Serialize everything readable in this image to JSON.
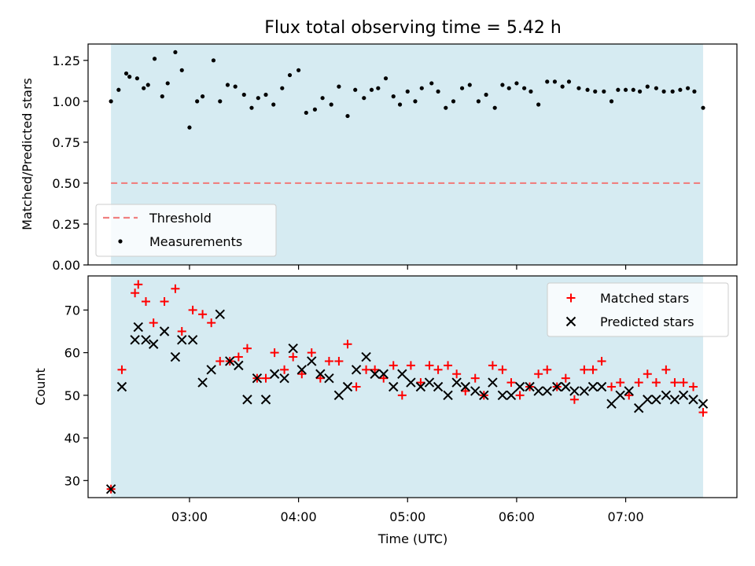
{
  "figure": {
    "title": "Flux total observing time = 5.42 h",
    "xlabel": "Time (UTC)"
  },
  "colors": {
    "span": "#add8e6",
    "threshold": "#f08080",
    "matched": "#ff0000",
    "predicted": "#000000",
    "measurement": "#000000"
  },
  "chart_data": [
    {
      "type": "scatter",
      "ylabel": "Matched/Predicted stars",
      "ylim": [
        0,
        1.35
      ],
      "yticks": [
        0,
        0.25,
        0.5,
        0.75,
        1.0,
        1.25
      ],
      "ytick_labels": [
        "0.00",
        "0.25",
        "0.50",
        "0.75",
        "1.00",
        "1.25"
      ],
      "x_unit": "hours UTC",
      "xlim": [
        2.07,
        8.02
      ],
      "xticks": [
        3,
        4,
        5,
        6,
        7
      ],
      "span": [
        2.28,
        7.71
      ],
      "threshold": 0.5,
      "legend": {
        "position": "lower-left",
        "threshold_label": "Threshold",
        "measurements_label": "Measurements"
      },
      "x": [
        2.28,
        2.35,
        2.42,
        2.45,
        2.52,
        2.58,
        2.62,
        2.68,
        2.75,
        2.8,
        2.87,
        2.93,
        3.0,
        3.07,
        3.12,
        3.22,
        3.28,
        3.35,
        3.42,
        3.5,
        3.57,
        3.63,
        3.7,
        3.77,
        3.85,
        3.92,
        4.0,
        4.07,
        4.15,
        4.22,
        4.3,
        4.37,
        4.45,
        4.52,
        4.6,
        4.67,
        4.73,
        4.8,
        4.87,
        4.93,
        5.0,
        5.07,
        5.13,
        5.22,
        5.28,
        5.35,
        5.42,
        5.5,
        5.57,
        5.65,
        5.72,
        5.8,
        5.87,
        5.93,
        6.0,
        6.07,
        6.13,
        6.2,
        6.28,
        6.35,
        6.42,
        6.48,
        6.57,
        6.65,
        6.72,
        6.8,
        6.87,
        6.93,
        7.0,
        7.07,
        7.13,
        7.2,
        7.28,
        7.35,
        7.43,
        7.5,
        7.57,
        7.63,
        7.71
      ],
      "y": [
        1.0,
        1.07,
        1.17,
        1.15,
        1.14,
        1.08,
        1.1,
        1.26,
        1.03,
        1.11,
        1.3,
        1.19,
        0.84,
        1.0,
        1.03,
        1.25,
        1.0,
        1.1,
        1.09,
        1.04,
        0.96,
        1.02,
        1.04,
        0.98,
        1.08,
        1.16,
        1.19,
        0.93,
        0.95,
        1.02,
        0.98,
        1.09,
        0.91,
        1.07,
        1.02,
        1.07,
        1.08,
        1.14,
        1.03,
        0.98,
        1.06,
        1.0,
        1.08,
        1.11,
        1.06,
        0.96,
        1.0,
        1.08,
        1.1,
        1.0,
        1.04,
        0.96,
        1.1,
        1.08,
        1.11,
        1.08,
        1.06,
        0.98,
        1.12,
        1.12,
        1.09,
        1.12,
        1.08,
        1.07,
        1.06,
        1.06,
        1.0,
        1.07,
        1.07,
        1.07,
        1.06,
        1.09,
        1.08,
        1.06,
        1.06,
        1.07,
        1.08,
        1.06,
        0.96
      ]
    },
    {
      "type": "scatter",
      "ylabel": "Count",
      "ylim": [
        26,
        78
      ],
      "yticks": [
        30,
        40,
        50,
        60,
        70
      ],
      "ytick_labels": [
        "30",
        "40",
        "50",
        "60",
        "70"
      ],
      "x_unit": "hours UTC",
      "xlim": [
        2.07,
        8.02
      ],
      "xticks": [
        3,
        4,
        5,
        6,
        7
      ],
      "xtick_labels": [
        "03:00",
        "04:00",
        "05:00",
        "06:00",
        "07:00"
      ],
      "span": [
        2.28,
        7.71
      ],
      "legend": {
        "position": "upper-right"
      },
      "series": [
        {
          "name": "Matched stars",
          "marker": "plus",
          "x": [
            2.28,
            2.38,
            2.5,
            2.53,
            2.6,
            2.67,
            2.77,
            2.87,
            2.93,
            3.03,
            3.12,
            3.2,
            3.28,
            3.37,
            3.45,
            3.53,
            3.62,
            3.7,
            3.78,
            3.87,
            3.95,
            4.03,
            4.12,
            4.2,
            4.28,
            4.37,
            4.45,
            4.53,
            4.62,
            4.7,
            4.78,
            4.87,
            4.95,
            5.03,
            5.12,
            5.2,
            5.28,
            5.37,
            5.45,
            5.53,
            5.62,
            5.7,
            5.78,
            5.87,
            5.95,
            6.03,
            6.12,
            6.2,
            6.28,
            6.37,
            6.45,
            6.53,
            6.62,
            6.7,
            6.78,
            6.87,
            6.95,
            7.03,
            7.12,
            7.2,
            7.28,
            7.37,
            7.45,
            7.53,
            7.62,
            7.71
          ],
          "y": [
            28,
            56,
            74,
            76,
            72,
            67,
            72,
            75,
            65,
            70,
            69,
            67,
            58,
            58,
            59,
            61,
            54,
            54,
            60,
            56,
            59,
            55,
            60,
            54,
            58,
            58,
            62,
            52,
            56,
            56,
            54,
            57,
            50,
            57,
            53,
            57,
            56,
            57,
            55,
            51,
            54,
            50,
            57,
            56,
            53,
            50,
            52,
            55,
            56,
            52,
            54,
            49,
            56,
            56,
            58,
            52,
            53,
            50,
            53,
            55,
            53,
            56,
            53,
            53,
            52,
            46
          ]
        },
        {
          "name": "Predicted stars",
          "marker": "x",
          "x": [
            2.28,
            2.38,
            2.5,
            2.53,
            2.6,
            2.67,
            2.77,
            2.87,
            2.93,
            3.03,
            3.12,
            3.2,
            3.28,
            3.37,
            3.45,
            3.53,
            3.62,
            3.7,
            3.78,
            3.87,
            3.95,
            4.03,
            4.12,
            4.2,
            4.28,
            4.37,
            4.45,
            4.53,
            4.62,
            4.7,
            4.78,
            4.87,
            4.95,
            5.03,
            5.12,
            5.2,
            5.28,
            5.37,
            5.45,
            5.53,
            5.62,
            5.7,
            5.78,
            5.87,
            5.95,
            6.03,
            6.12,
            6.2,
            6.28,
            6.37,
            6.45,
            6.53,
            6.62,
            6.7,
            6.78,
            6.87,
            6.95,
            7.03,
            7.12,
            7.2,
            7.28,
            7.37,
            7.45,
            7.53,
            7.62,
            7.71
          ],
          "y": [
            28,
            52,
            63,
            66,
            63,
            62,
            65,
            59,
            63,
            63,
            53,
            56,
            69,
            58,
            57,
            49,
            54,
            49,
            55,
            54,
            61,
            56,
            58,
            55,
            54,
            50,
            52,
            56,
            59,
            55,
            55,
            52,
            55,
            53,
            52,
            53,
            52,
            50,
            53,
            52,
            51,
            50,
            53,
            50,
            50,
            52,
            52,
            51,
            51,
            52,
            52,
            51,
            51,
            52,
            52,
            48,
            50,
            51,
            47,
            49,
            49,
            50,
            49,
            50,
            49,
            48
          ]
        }
      ]
    }
  ]
}
